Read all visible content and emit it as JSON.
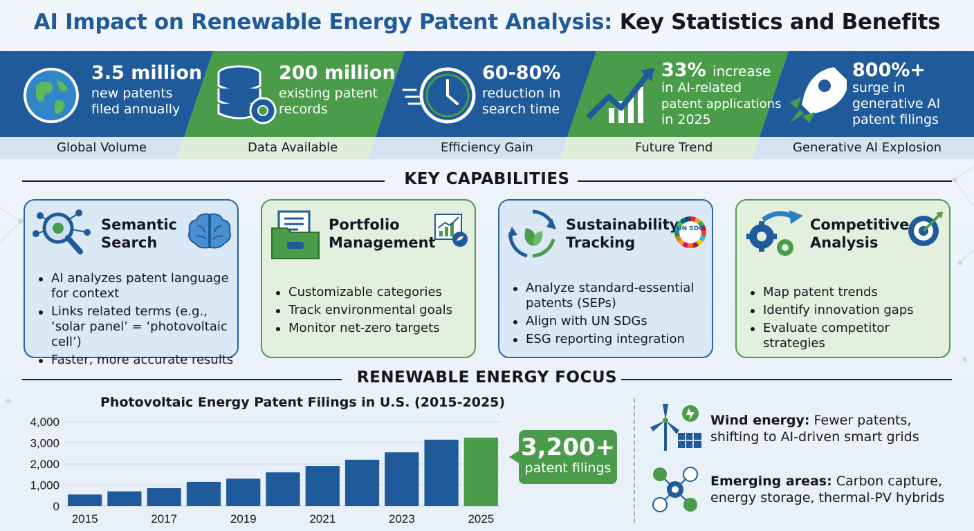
{
  "title": {
    "part1": "AI Impact on Renewable Energy Patent Analysis:",
    "part2": "Key Statistics and Benefits"
  },
  "stats": [
    {
      "value": "3.5 million",
      "line1": "new patents",
      "line2": "filed annually",
      "caption": "Global Volume",
      "icon": "globe-icon"
    },
    {
      "value": "200 million",
      "line1": "existing patent",
      "line2": "records",
      "caption": "Data Available",
      "icon": "database-gear-icon"
    },
    {
      "value": "60-80%",
      "line1": "reduction in",
      "line2": "search time",
      "caption": "Efficiency Gain",
      "icon": "clock-icon"
    },
    {
      "value": "33%",
      "value_suffix": "increase",
      "line1": "in AI-related",
      "line2": "patent applications",
      "line3": "in 2025",
      "caption": "Future Trend",
      "icon": "trend-up-icon"
    },
    {
      "value": "800%+",
      "line1": "surge in",
      "line2": "generative AI",
      "line3": "patent filings",
      "caption": "Generative AI Explosion",
      "icon": "rocket-icon"
    }
  ],
  "colors": {
    "blue": "#1f5a9a",
    "green": "#4a9c4a",
    "dark": "#141821"
  },
  "sections": {
    "capabilities": "KEY CAPABILITIES",
    "focus": "RENEWABLE ENERGY FOCUS"
  },
  "capabilities": [
    {
      "title_line1": "Semantic",
      "title_line2": "Search",
      "icon": "magnifier-gear-icon",
      "side_icon": "brain-icon",
      "bullets": [
        "AI analyzes patent language for context",
        "Links related terms (e.g., ‘solar panel’ = ‘photovoltaic cell’)",
        "Faster, more accurate results"
      ]
    },
    {
      "title_line1": "Portfolio",
      "title_line2": "Management",
      "icon": "folder-icon",
      "side_icon": "chart-icon",
      "bullets": [
        "Customizable categories",
        "Track environmental goals",
        "Monitor net-zero targets"
      ]
    },
    {
      "title_line1": "Sustainability",
      "title_line2": "Tracking",
      "icon": "recycle-leaf-icon",
      "side_icon": "un-sdg-icon",
      "side_text": "UN SDG",
      "bullets": [
        "Analyze standard-essential patents (SEPs)",
        "Align with UN SDGs",
        "ESG reporting integration"
      ]
    },
    {
      "title_line1": "Competitive",
      "title_line2": "Analysis",
      "icon": "gears-arrow-icon",
      "side_icon": "target-icon",
      "bullets": [
        "Map patent trends",
        "Identify innovation gaps",
        "Evaluate competitor strategies"
      ]
    }
  ],
  "chart_data": {
    "type": "bar",
    "title": "Photovoltaic Energy Patent Filings in U.S. (2015-2025)",
    "categories": [
      "2015",
      "2016",
      "2017",
      "2018",
      "2019",
      "2020",
      "2021",
      "2022",
      "2023",
      "2024",
      "2025"
    ],
    "x_tick_labels": [
      "2015",
      "2017",
      "2019",
      "2021",
      "2023",
      "2025"
    ],
    "values": [
      550,
      700,
      850,
      1150,
      1300,
      1600,
      1900,
      2200,
      2550,
      3150,
      3250
    ],
    "highlight_index": 10,
    "ylim": [
      0,
      4000
    ],
    "y_ticks": [
      0,
      1000,
      2000,
      3000,
      4000
    ],
    "y_tick_labels": [
      "0",
      "1,000",
      "2,000",
      "3,000",
      "4,000"
    ],
    "grid": true,
    "bar_color": "#1f5a9a",
    "highlight_color": "#4a9c4a"
  },
  "callout": {
    "value": "3,200+",
    "label": "patent filings"
  },
  "focus": [
    {
      "bold": "Wind energy:",
      "text": "Fewer patents, shifting to AI-driven smart grids",
      "icon": "wind-turbine-icon"
    },
    {
      "bold": "Emerging areas:",
      "text": "Carbon capture, energy storage, thermal-PV hybrids",
      "icon": "energy-network-icon"
    }
  ]
}
